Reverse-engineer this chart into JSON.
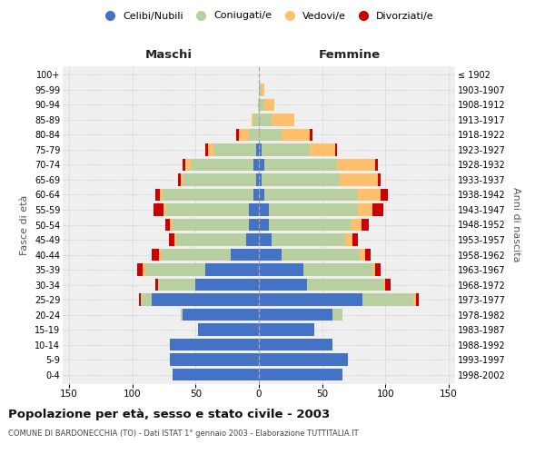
{
  "age_groups": [
    "0-4",
    "5-9",
    "10-14",
    "15-19",
    "20-24",
    "25-29",
    "30-34",
    "35-39",
    "40-44",
    "45-49",
    "50-54",
    "55-59",
    "60-64",
    "65-69",
    "70-74",
    "75-79",
    "80-84",
    "85-89",
    "90-94",
    "95-99",
    "100+"
  ],
  "birth_years": [
    "1998-2002",
    "1993-1997",
    "1988-1992",
    "1983-1987",
    "1978-1982",
    "1973-1977",
    "1968-1972",
    "1963-1967",
    "1958-1962",
    "1953-1957",
    "1948-1952",
    "1943-1947",
    "1938-1942",
    "1933-1937",
    "1928-1932",
    "1923-1927",
    "1918-1922",
    "1913-1917",
    "1908-1912",
    "1903-1907",
    "≤ 1902"
  ],
  "males": {
    "celibi": [
      68,
      70,
      70,
      48,
      60,
      85,
      50,
      42,
      22,
      10,
      8,
      8,
      4,
      2,
      4,
      2,
      0,
      0,
      0,
      0,
      0
    ],
    "coniugati": [
      0,
      0,
      0,
      0,
      2,
      8,
      30,
      48,
      55,
      55,
      60,
      65,
      72,
      58,
      50,
      34,
      8,
      4,
      1,
      0,
      0
    ],
    "vedovi": [
      0,
      0,
      0,
      0,
      0,
      0,
      0,
      2,
      2,
      2,
      2,
      2,
      2,
      2,
      4,
      4,
      8,
      2,
      0,
      0,
      0
    ],
    "divorziati": [
      0,
      0,
      0,
      0,
      0,
      2,
      2,
      4,
      6,
      4,
      4,
      8,
      4,
      2,
      2,
      2,
      2,
      0,
      0,
      0,
      0
    ]
  },
  "females": {
    "nubili": [
      66,
      70,
      58,
      44,
      58,
      82,
      38,
      35,
      18,
      10,
      8,
      8,
      4,
      2,
      4,
      2,
      0,
      0,
      0,
      0,
      0
    ],
    "coniugate": [
      0,
      0,
      0,
      0,
      8,
      40,
      60,
      55,
      62,
      58,
      65,
      70,
      74,
      62,
      58,
      38,
      18,
      10,
      4,
      2,
      0
    ],
    "vedove": [
      0,
      0,
      0,
      0,
      0,
      2,
      2,
      2,
      4,
      6,
      8,
      12,
      18,
      30,
      30,
      20,
      22,
      18,
      8,
      2,
      0
    ],
    "divorziate": [
      0,
      0,
      0,
      0,
      0,
      2,
      4,
      4,
      4,
      4,
      6,
      8,
      6,
      2,
      2,
      2,
      2,
      0,
      0,
      0,
      0
    ]
  },
  "colors": {
    "celibi": "#4472c4",
    "coniugati": "#b8cfa0",
    "vedovi": "#ffc06e",
    "divorziati": "#cc0000"
  },
  "xlim": 155,
  "title": "Popolazione per età, sesso e stato civile - 2003",
  "subtitle": "COMUNE DI BARDONECCHIA (TO) - Dati ISTAT 1° gennaio 2003 - Elaborazione TUTTITALIA.IT",
  "xlabel_left": "Maschi",
  "xlabel_right": "Femmine",
  "ylabel_left": "Fasce di età",
  "ylabel_right": "Anni di nascita",
  "bg_color": "#efefef"
}
